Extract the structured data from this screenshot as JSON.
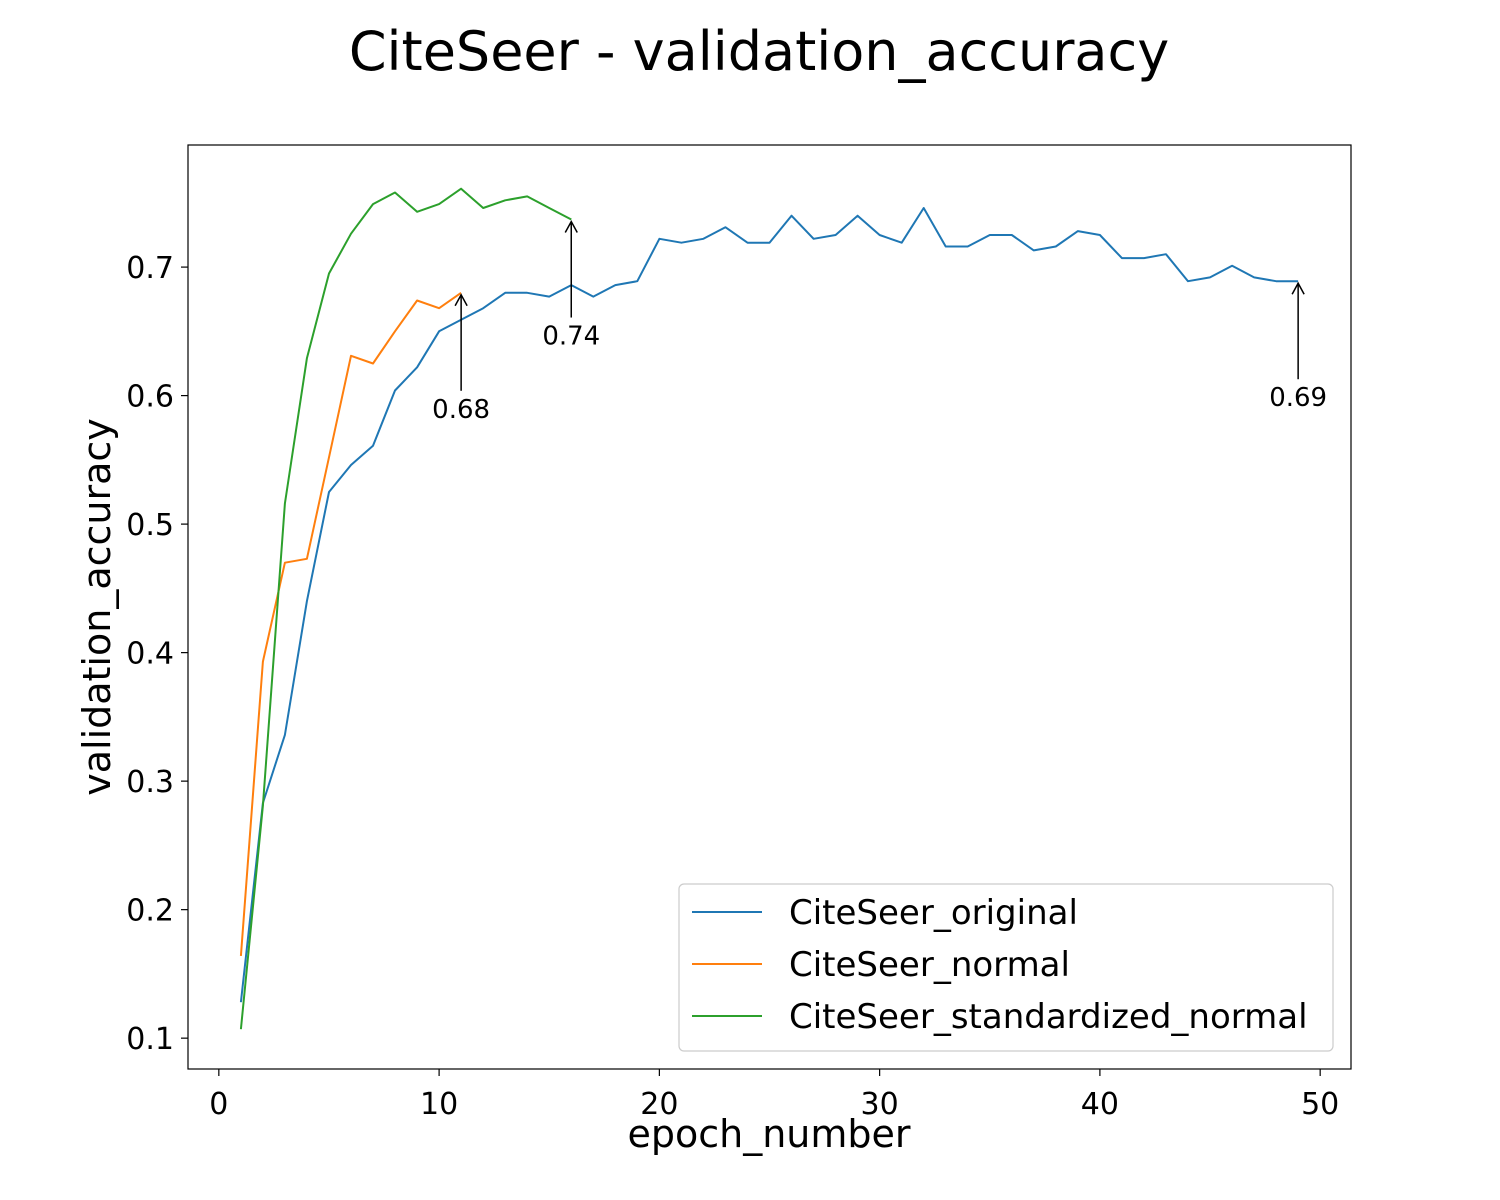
{
  "chart_data": {
    "type": "line",
    "title": "CiteSeer - validation_accuracy",
    "xlabel": "epoch_number",
    "ylabel": "validation_accuracy",
    "xlim": [
      -1.4,
      51.4
    ],
    "ylim": [
      0.076,
      0.795
    ],
    "xticks": [
      0,
      10,
      20,
      30,
      40,
      50
    ],
    "yticks": [
      0.1,
      0.2,
      0.3,
      0.4,
      0.5,
      0.6,
      0.7
    ],
    "xtick_labels": [
      "0",
      "10",
      "20",
      "30",
      "40",
      "50"
    ],
    "ytick_labels": [
      "0.1",
      "0.2",
      "0.3",
      "0.4",
      "0.5",
      "0.6",
      "0.7"
    ],
    "grid": false,
    "legend_position": "lower-right",
    "series": [
      {
        "name": "CiteSeer_original",
        "color": "#1f77b4",
        "x": [
          1,
          2,
          3,
          4,
          5,
          6,
          7,
          8,
          9,
          10,
          11,
          12,
          13,
          14,
          15,
          16,
          17,
          18,
          19,
          20,
          21,
          22,
          23,
          24,
          25,
          26,
          27,
          28,
          29,
          30,
          31,
          32,
          33,
          34,
          35,
          36,
          37,
          38,
          39,
          40,
          41,
          42,
          43,
          44,
          45,
          46,
          47,
          48,
          49
        ],
        "values": [
          0.128,
          0.283,
          0.336,
          0.44,
          0.525,
          0.546,
          0.561,
          0.604,
          0.622,
          0.65,
          0.659,
          0.668,
          0.68,
          0.68,
          0.677,
          0.686,
          0.677,
          0.686,
          0.689,
          0.722,
          0.719,
          0.722,
          0.731,
          0.719,
          0.719,
          0.74,
          0.722,
          0.725,
          0.74,
          0.725,
          0.719,
          0.746,
          0.716,
          0.716,
          0.725,
          0.725,
          0.713,
          0.716,
          0.728,
          0.725,
          0.707,
          0.707,
          0.71,
          0.689,
          0.692,
          0.701,
          0.692,
          0.689,
          0.689
        ]
      },
      {
        "name": "CiteSeer_normal",
        "color": "#ff7f0e",
        "x": [
          1,
          2,
          3,
          4,
          5,
          6,
          7,
          8,
          9,
          10,
          11
        ],
        "values": [
          0.164,
          0.393,
          0.47,
          0.473,
          0.552,
          0.631,
          0.625,
          0.65,
          0.674,
          0.668,
          0.68
        ]
      },
      {
        "name": "CiteSeer_standardized_normal",
        "color": "#2ca02c",
        "x": [
          1,
          2,
          3,
          4,
          5,
          6,
          7,
          8,
          9,
          10,
          11,
          12,
          13,
          14,
          15,
          16
        ],
        "values": [
          0.107,
          0.281,
          0.516,
          0.629,
          0.695,
          0.726,
          0.749,
          0.758,
          0.743,
          0.749,
          0.761,
          0.746,
          0.752,
          0.755,
          0.746,
          0.737
        ]
      }
    ],
    "annotations": [
      {
        "text": "0.68",
        "x": 11,
        "y": 0.68,
        "series": "CiteSeer_normal"
      },
      {
        "text": "0.74",
        "x": 16,
        "y": 0.737,
        "series": "CiteSeer_standardized_normal"
      },
      {
        "text": "0.69",
        "x": 49,
        "y": 0.689,
        "series": "CiteSeer_original"
      }
    ]
  }
}
